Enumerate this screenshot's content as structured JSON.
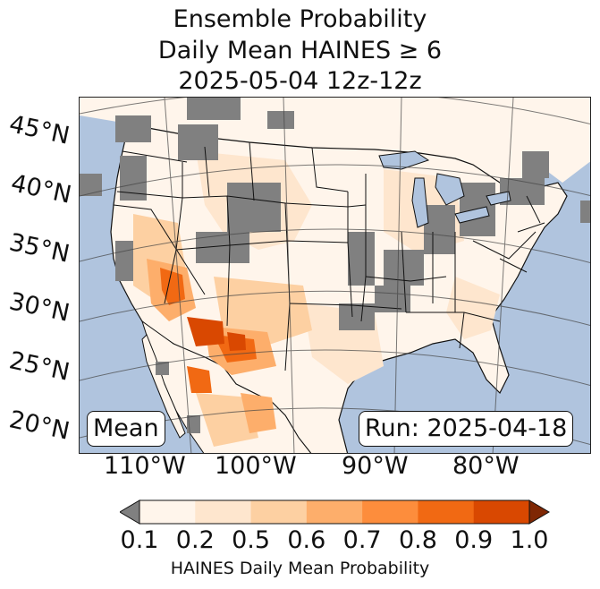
{
  "title": {
    "line1": "Ensemble Probability",
    "line2": "Daily Mean HAINES ≥ 6",
    "line3": "2025-05-04 12z-12z"
  },
  "map": {
    "lat_labels": [
      "45°N",
      "40°N",
      "35°N",
      "30°N",
      "25°N",
      "20°N"
    ],
    "lon_labels": [
      "110°W",
      "100°W",
      "90°W",
      "80°W"
    ],
    "stat_label": "Mean",
    "run_label": "Run: 2025-04-18",
    "colors": {
      "ocean": "#b0c4de",
      "masked_gray": "#808080",
      "land_low": "#fff5eb"
    }
  },
  "colorbar": {
    "tick_labels": [
      "0.1",
      "0.2",
      "0.5",
      "0.6",
      "0.7",
      "0.8",
      "0.9",
      "1.0"
    ],
    "colors": [
      "#fff5eb",
      "#fee6ce",
      "#fdd0a2",
      "#fdae6b",
      "#fd8d3c",
      "#f16913",
      "#d94801"
    ],
    "under_color": "#808080",
    "over_color": "#7f2704",
    "label": "HAINES Daily Mean Probability"
  }
}
